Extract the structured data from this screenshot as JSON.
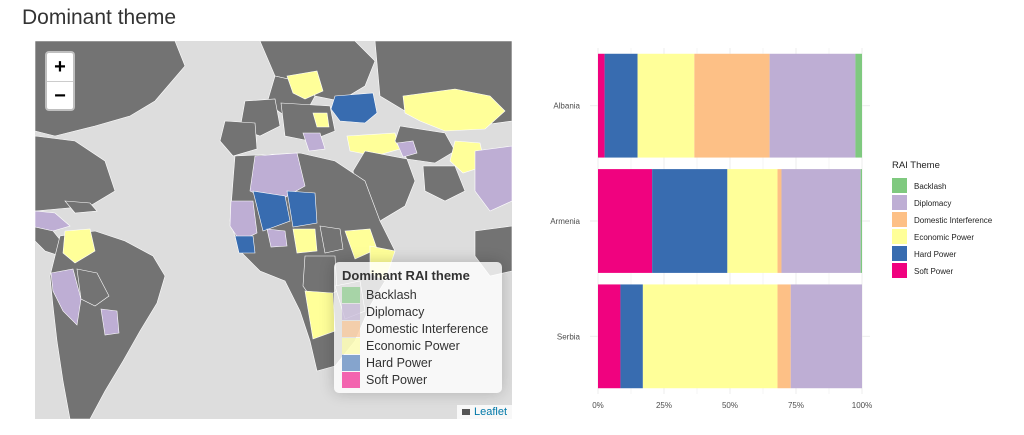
{
  "page": {
    "title": "Dominant theme"
  },
  "map": {
    "zoom_in": "+",
    "zoom_out": "−",
    "legend_title": "Dominant RAI theme",
    "legend": [
      {
        "label": "Backlash",
        "color": "#7fc97f"
      },
      {
        "label": "Diplomacy",
        "color": "#beaed4"
      },
      {
        "label": "Domestic Interference",
        "color": "#fdc086"
      },
      {
        "label": "Economic Power",
        "color": "#ffff99"
      },
      {
        "label": "Hard Power",
        "color": "#386cb0"
      },
      {
        "label": "Soft Power",
        "color": "#f0027f"
      }
    ],
    "attribution": "Leaflet",
    "land_color": "#737373",
    "water_color": "#dddddd"
  },
  "chart_data": {
    "type": "bar",
    "orientation": "horizontal",
    "stacked": "percent",
    "categories": [
      "Albania",
      "Armenia",
      "Serbia"
    ],
    "series": [
      {
        "name": "Soft Power",
        "color": "#f0027f",
        "values": [
          2.5,
          20.5,
          8.5
        ]
      },
      {
        "name": "Hard Power",
        "color": "#386cb0",
        "values": [
          12.5,
          28.5,
          8.5
        ]
      },
      {
        "name": "Economic Power",
        "color": "#ffff99",
        "values": [
          21.5,
          19.0,
          51.0
        ]
      },
      {
        "name": "Domestic Interference",
        "color": "#fdc086",
        "values": [
          28.5,
          1.5,
          5.0
        ]
      },
      {
        "name": "Diplomacy",
        "color": "#beaed4",
        "values": [
          32.5,
          30.0,
          27.0
        ]
      },
      {
        "name": "Backlash",
        "color": "#7fc97f",
        "values": [
          2.5,
          0.5,
          0.0
        ]
      }
    ],
    "x_ticks": [
      "0%",
      "25%",
      "50%",
      "75%",
      "100%"
    ],
    "legend_title": "RAI Theme",
    "legend_order": [
      "Backlash",
      "Diplomacy",
      "Domestic Interference",
      "Economic Power",
      "Hard Power",
      "Soft Power"
    ],
    "legend_position": "right",
    "grid": true,
    "xlim": [
      0,
      100
    ]
  }
}
